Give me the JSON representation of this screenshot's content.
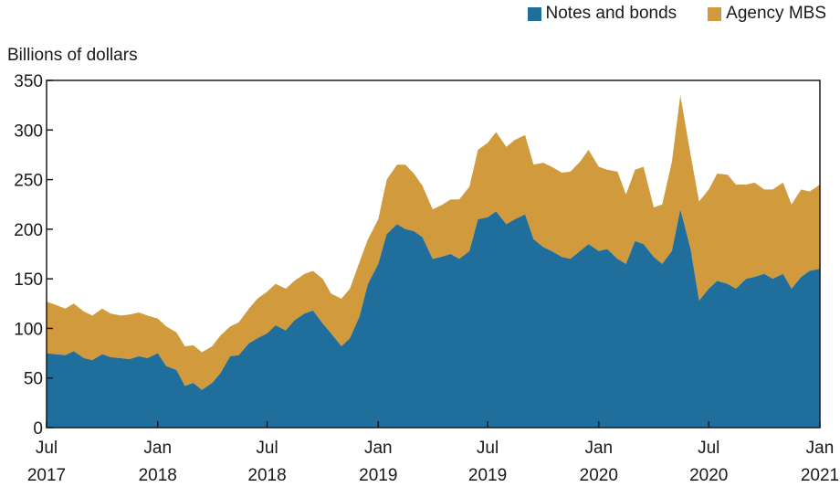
{
  "colors": {
    "notes": "#1f6e9c",
    "mbs": "#d19b3d",
    "axis": "#1a1a1a"
  },
  "chart_data": {
    "type": "area",
    "stacked": true,
    "title": "",
    "ylabel": "Billions of dollars",
    "xlabel": "",
    "ylim": [
      0,
      350
    ],
    "yticks": [
      0,
      50,
      100,
      150,
      200,
      250,
      300,
      350
    ],
    "x_tick_labels": [
      {
        "month": "Jul",
        "year": "2017",
        "date": "2017-07"
      },
      {
        "month": "Jan",
        "year": "2018",
        "date": "2018-01"
      },
      {
        "month": "Jul",
        "year": "2018",
        "date": "2018-07"
      },
      {
        "month": "Jan",
        "year": "2019",
        "date": "2019-01"
      },
      {
        "month": "Jul",
        "year": "2019",
        "date": "2019-07"
      },
      {
        "month": "Jan",
        "year": "2020",
        "date": "2020-01"
      },
      {
        "month": "Jul",
        "year": "2020",
        "date": "2020-07"
      },
      {
        "month": "Jan",
        "year": "2021",
        "date": "2021-01"
      }
    ],
    "legend_position": "top-right",
    "grid": false,
    "x": [
      "2017-07-01",
      "2017-07-15",
      "2017-08-01",
      "2017-08-15",
      "2017-09-01",
      "2017-09-15",
      "2017-10-01",
      "2017-10-15",
      "2017-11-01",
      "2017-11-15",
      "2017-12-01",
      "2017-12-15",
      "2018-01-01",
      "2018-01-15",
      "2018-02-01",
      "2018-02-15",
      "2018-03-01",
      "2018-03-15",
      "2018-04-01",
      "2018-04-15",
      "2018-05-01",
      "2018-05-15",
      "2018-06-01",
      "2018-06-15",
      "2018-07-01",
      "2018-07-15",
      "2018-08-01",
      "2018-08-15",
      "2018-09-01",
      "2018-09-15",
      "2018-10-01",
      "2018-10-15",
      "2018-11-01",
      "2018-11-15",
      "2018-12-01",
      "2018-12-15",
      "2019-01-01",
      "2019-01-15",
      "2019-02-01",
      "2019-02-15",
      "2019-03-01",
      "2019-03-15",
      "2019-04-01",
      "2019-04-15",
      "2019-05-01",
      "2019-05-15",
      "2019-06-01",
      "2019-06-15",
      "2019-07-01",
      "2019-07-15",
      "2019-08-01",
      "2019-08-15",
      "2019-09-01",
      "2019-09-15",
      "2019-10-01",
      "2019-10-15",
      "2019-11-01",
      "2019-11-15",
      "2019-12-01",
      "2019-12-15",
      "2020-01-01",
      "2020-01-15",
      "2020-02-01",
      "2020-02-15",
      "2020-03-01",
      "2020-03-15",
      "2020-04-01",
      "2020-04-15",
      "2020-05-01",
      "2020-05-15",
      "2020-06-01",
      "2020-06-15",
      "2020-07-01",
      "2020-07-15",
      "2020-08-01",
      "2020-08-15",
      "2020-09-01",
      "2020-09-15",
      "2020-10-01",
      "2020-10-15",
      "2020-11-01",
      "2020-11-15",
      "2020-12-01",
      "2020-12-15",
      "2021-01-01"
    ],
    "series": [
      {
        "name": "Notes and bonds",
        "values": [
          75,
          74,
          73,
          77,
          70,
          68,
          74,
          71,
          70,
          69,
          72,
          70,
          75,
          62,
          58,
          42,
          45,
          38,
          45,
          55,
          72,
          73,
          85,
          90,
          95,
          103,
          98,
          108,
          115,
          118,
          105,
          95,
          82,
          90,
          112,
          145,
          165,
          195,
          205,
          200,
          198,
          192,
          170,
          172,
          175,
          170,
          178,
          210,
          212,
          218,
          205,
          210,
          215,
          190,
          182,
          178,
          172,
          170,
          178,
          185,
          178,
          180,
          170,
          165,
          188,
          185,
          172,
          165,
          178,
          220,
          180,
          128,
          140,
          148,
          145,
          140,
          150,
          152,
          155,
          150,
          155,
          140,
          152,
          158,
          160
        ]
      },
      {
        "name": "Agency MBS",
        "values": [
          52,
          50,
          47,
          48,
          47,
          45,
          46,
          44,
          43,
          45,
          44,
          43,
          35,
          40,
          38,
          40,
          38,
          38,
          37,
          38,
          30,
          33,
          35,
          40,
          42,
          42,
          42,
          40,
          40,
          40,
          45,
          40,
          48,
          50,
          55,
          45,
          45,
          55,
          60,
          65,
          58,
          52,
          50,
          52,
          55,
          60,
          65,
          70,
          75,
          80,
          78,
          80,
          80,
          75,
          85,
          85,
          85,
          88,
          90,
          95,
          85,
          80,
          88,
          70,
          72,
          78,
          50,
          60,
          90,
          115,
          95,
          100,
          100,
          108,
          110,
          105,
          95,
          95,
          85,
          90,
          92,
          85,
          88,
          80,
          85
        ]
      }
    ]
  }
}
